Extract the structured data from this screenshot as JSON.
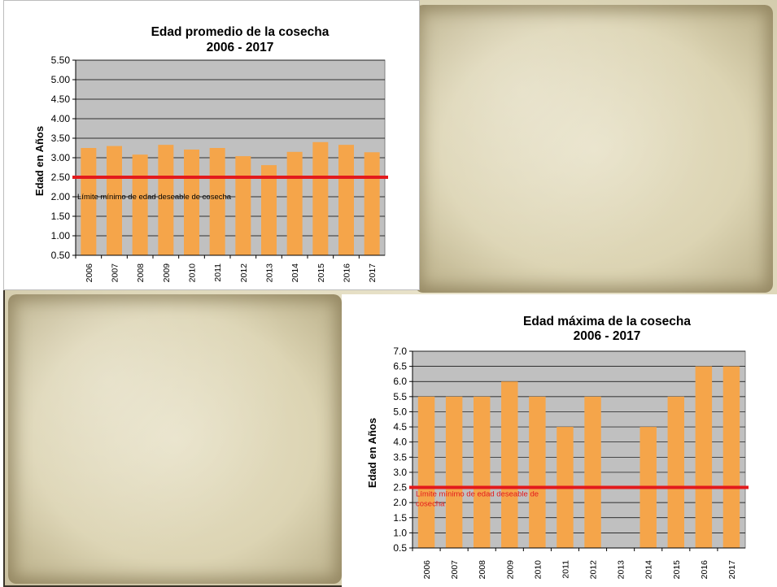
{
  "chart_data": [
    {
      "type": "bar",
      "title_line1": "Edad promedio de la cosecha",
      "title_line2": "2006 - 2017",
      "ylabel": "Edad en Años",
      "categories": [
        "2006",
        "2007",
        "2008",
        "2009",
        "2010",
        "2011",
        "2012",
        "2013",
        "2014",
        "2015",
        "2016",
        "2017"
      ],
      "values": [
        3.25,
        3.3,
        3.08,
        3.33,
        3.21,
        3.25,
        3.04,
        2.81,
        3.15,
        3.4,
        3.33,
        3.14
      ],
      "ylim": [
        0.5,
        5.5
      ],
      "yticks": [
        "0.50",
        "1.00",
        "1.50",
        "2.00",
        "2.50",
        "3.00",
        "3.50",
        "4.00",
        "4.50",
        "5.00",
        "5.50"
      ],
      "reference_line": {
        "value": 2.5,
        "color": "#e31a1c"
      },
      "annotation": "Límite mínimo de edad deseable de cosecha",
      "bar_color": "#f5a54a",
      "plot_bg": "#c0c0c0",
      "grid": true
    },
    {
      "type": "bar",
      "title_line1": "Edad  máxima de la cosecha",
      "title_line2": "2006 - 2017",
      "ylabel": "Edad en Años",
      "categories": [
        "2006",
        "2007",
        "2008",
        "2009",
        "2010",
        "2011",
        "2012",
        "2013",
        "2014",
        "2015",
        "2016",
        "2017"
      ],
      "values": [
        5.5,
        5.5,
        5.5,
        6.0,
        5.5,
        4.5,
        5.5,
        null,
        4.5,
        5.5,
        6.5,
        6.5
      ],
      "ylim": [
        0.5,
        7.0
      ],
      "yticks": [
        "0.5",
        "1.0",
        "1.5",
        "2.0",
        "2.5",
        "3.0",
        "3.5",
        "4.0",
        "4.5",
        "5.0",
        "5.5",
        "6.0",
        "6.5",
        "7.0"
      ],
      "reference_line": {
        "value": 2.5,
        "color": "#e31a1c"
      },
      "annotation_line1": "Límite mínimo de edad deseable de",
      "annotation_line2": "cosecha",
      "bar_color": "#f5a54a",
      "plot_bg": "#c0c0c0",
      "grid": true
    }
  ]
}
